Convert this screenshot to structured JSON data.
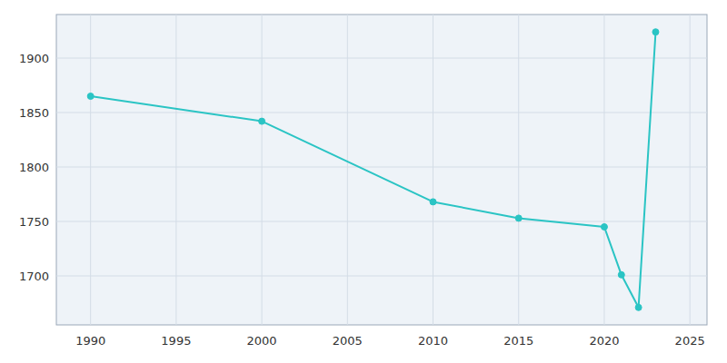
{
  "chart_data": {
    "type": "line",
    "x": [
      1990,
      2000,
      2010,
      2015,
      2020,
      2021,
      2022,
      2023
    ],
    "values": [
      1865,
      1842,
      1768,
      1753,
      1745,
      1701,
      1671,
      1924
    ],
    "color": "#2ac4c4",
    "marker": "circle",
    "xlim": [
      1988,
      2026
    ],
    "ylim": [
      1655,
      1940
    ],
    "xticks": [
      1990,
      1995,
      2000,
      2005,
      2010,
      2015,
      2020,
      2025
    ],
    "yticks": [
      1700,
      1750,
      1800,
      1850,
      1900
    ],
    "grid": true
  }
}
